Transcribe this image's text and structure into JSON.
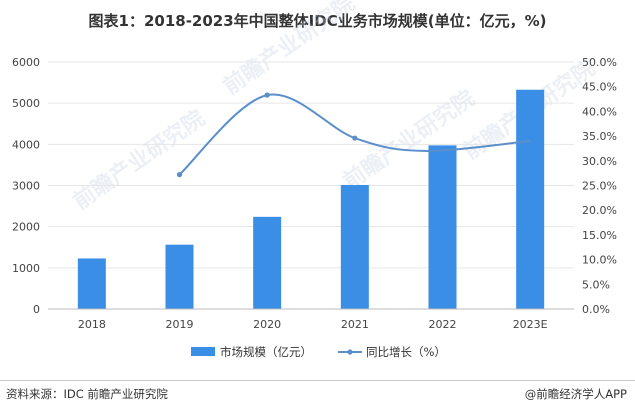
{
  "title": "图表1：2018-2023年中国整体IDC业务市场规模(单位：亿元，%)",
  "source": "资料来源：IDC 前瞻产业研究院",
  "brand": "@前瞻经济学人APP",
  "watermark": "前瞻产业研究院",
  "colors": {
    "bar": "#3a8ee6",
    "line": "#5a8fc9",
    "grid": "#e6e6e6",
    "axis": "#bbbbbb"
  },
  "chart_data": {
    "type": "bar",
    "categories": [
      "2018",
      "2019",
      "2020",
      "2021",
      "2022",
      "2023E"
    ],
    "series": [
      {
        "name": "市场规模（亿元）",
        "type": "bar",
        "axis": "left",
        "values": [
          1228,
          1562,
          2239,
          3013,
          3975,
          5326
        ]
      },
      {
        "name": "同比增长（%）",
        "type": "line",
        "axis": "right",
        "smooth": true,
        "values": [
          null,
          27.2,
          43.3,
          34.6,
          null,
          null
        ]
      }
    ],
    "y_left": {
      "min": 0,
      "max": 6000,
      "step": 1000,
      "ticks": [
        "0",
        "1000",
        "2000",
        "3000",
        "4000",
        "5000",
        "6000"
      ]
    },
    "y_right": {
      "min": 0,
      "max": 50,
      "step": 5,
      "ticks": [
        "0.0%",
        "5.0%",
        "10.0%",
        "15.0%",
        "20.0%",
        "25.0%",
        "30.0%",
        "35.0%",
        "40.0%",
        "45.0%",
        "50.0%"
      ]
    },
    "growth_curve_extra": [
      32.0,
      34.0
    ],
    "grid": true,
    "legend": "bottom"
  }
}
